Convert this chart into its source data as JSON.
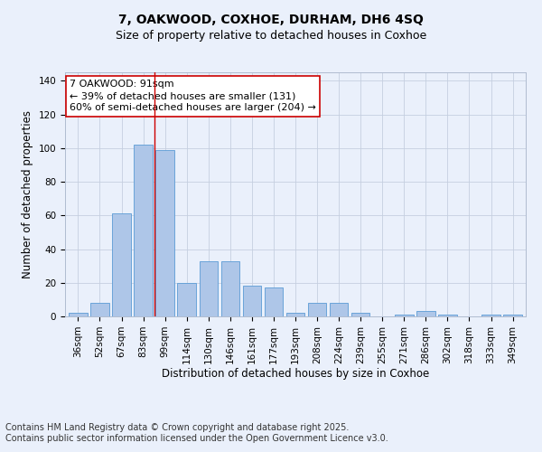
{
  "title_line1": "7, OAKWOOD, COXHOE, DURHAM, DH6 4SQ",
  "title_line2": "Size of property relative to detached houses in Coxhoe",
  "xlabel": "Distribution of detached houses by size in Coxhoe",
  "ylabel": "Number of detached properties",
  "categories": [
    "36sqm",
    "52sqm",
    "67sqm",
    "83sqm",
    "99sqm",
    "114sqm",
    "130sqm",
    "146sqm",
    "161sqm",
    "177sqm",
    "193sqm",
    "208sqm",
    "224sqm",
    "239sqm",
    "255sqm",
    "271sqm",
    "286sqm",
    "302sqm",
    "318sqm",
    "333sqm",
    "349sqm"
  ],
  "values": [
    2,
    8,
    61,
    102,
    99,
    20,
    33,
    33,
    18,
    17,
    2,
    8,
    8,
    2,
    0,
    1,
    3,
    1,
    0,
    1,
    1
  ],
  "bar_color": "#aec6e8",
  "bar_edge_color": "#5b9bd5",
  "vline_x": 3.5,
  "vline_color": "#cc0000",
  "annotation_text": "7 OAKWOOD: 91sqm\n← 39% of detached houses are smaller (131)\n60% of semi-detached houses are larger (204) →",
  "annotation_box_color": "#ffffff",
  "annotation_box_edge": "#cc0000",
  "ylim": [
    0,
    145
  ],
  "yticks": [
    0,
    20,
    40,
    60,
    80,
    100,
    120,
    140
  ],
  "bg_color": "#eaf0fb",
  "footer_line1": "Contains HM Land Registry data © Crown copyright and database right 2025.",
  "footer_line2": "Contains public sector information licensed under the Open Government Licence v3.0.",
  "title_fontsize": 10,
  "subtitle_fontsize": 9,
  "axis_label_fontsize": 8.5,
  "tick_fontsize": 7.5,
  "annotation_fontsize": 8,
  "footer_fontsize": 7
}
